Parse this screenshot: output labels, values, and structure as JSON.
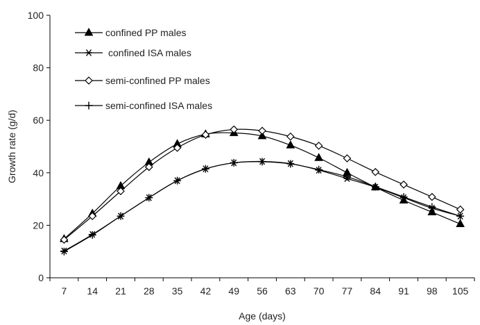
{
  "chart_data": {
    "type": "line",
    "title": "",
    "xlabel": "Age (days)",
    "ylabel": "Growth rate (g/d)",
    "ylim": [
      0,
      100
    ],
    "yticks": [
      0,
      20,
      40,
      60,
      80,
      100
    ],
    "x": [
      7,
      14,
      21,
      28,
      35,
      42,
      49,
      56,
      63,
      70,
      77,
      84,
      91,
      98,
      105
    ],
    "grid": false,
    "legend": "top-left",
    "series": [
      {
        "name": "confined PP males",
        "marker": "filled-triangle",
        "values": [
          14.8,
          24.5,
          35.0,
          44.0,
          51.0,
          54.7,
          55.2,
          54.0,
          50.5,
          45.7,
          40.0,
          34.5,
          29.5,
          25.0,
          20.5
        ]
      },
      {
        "name": "confined ISA males",
        "marker": "asterisk",
        "values": [
          10.2,
          16.5,
          23.5,
          30.5,
          37.0,
          41.5,
          43.8,
          44.3,
          43.5,
          41.0,
          37.8,
          34.5,
          30.5,
          26.5,
          23.5
        ]
      },
      {
        "name": "semi-confined PP males",
        "marker": "open-diamond",
        "values": [
          14.5,
          23.5,
          33.0,
          42.2,
          49.5,
          54.5,
          56.5,
          56.0,
          53.8,
          50.3,
          45.5,
          40.3,
          35.5,
          30.8,
          26.0
        ]
      },
      {
        "name": "semi-confined ISA males",
        "marker": "plus",
        "values": [
          10.0,
          16.3,
          23.5,
          30.5,
          37.0,
          41.5,
          43.8,
          44.2,
          43.4,
          41.2,
          38.5,
          34.7,
          30.8,
          27.0,
          23.5
        ]
      }
    ]
  }
}
